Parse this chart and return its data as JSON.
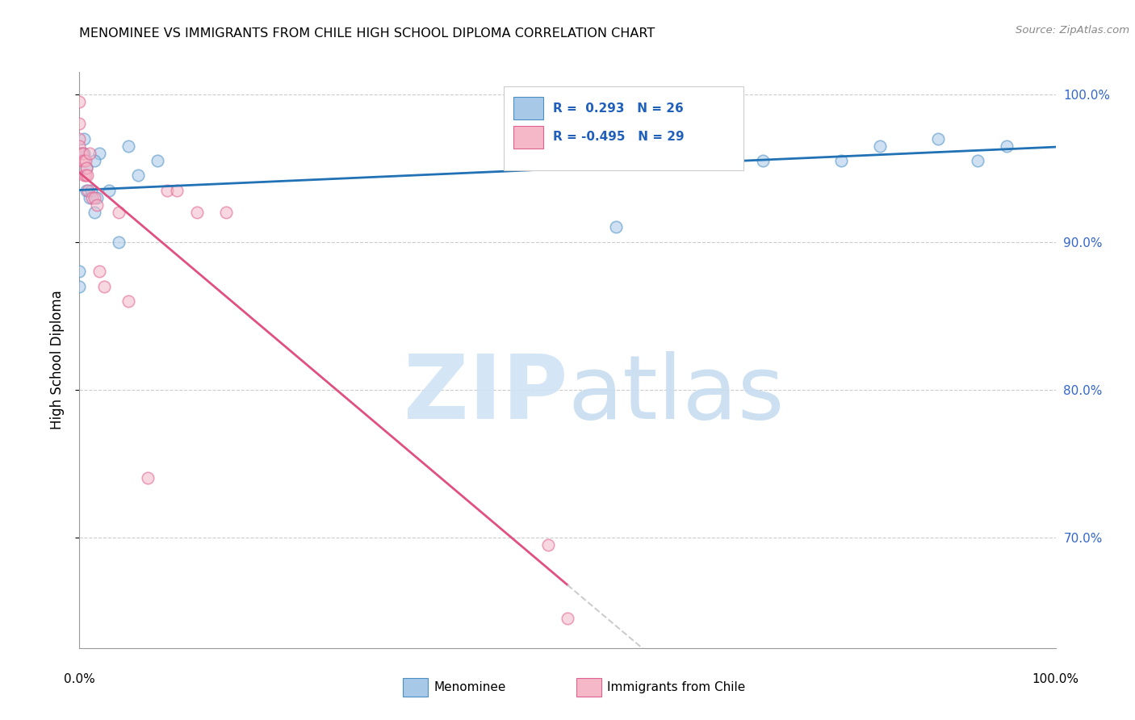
{
  "title": "MENOMINEE VS IMMIGRANTS FROM CHILE HIGH SCHOOL DIPLOMA CORRELATION CHART",
  "source": "Source: ZipAtlas.com",
  "ylabel": "High School Diploma",
  "watermark_zip": "ZIP",
  "watermark_atlas": "atlas",
  "legend_blue_r_val": "0.293",
  "legend_blue_n": "N = 26",
  "legend_pink_r_val": "-0.495",
  "legend_pink_n": "N = 29",
  "menominee_label": "Menominee",
  "chile_label": "Immigrants from Chile",
  "blue_fill": "#a8c8e8",
  "blue_edge": "#4a90c4",
  "pink_fill": "#f4b8c8",
  "pink_edge": "#e06090",
  "blue_line_color": "#2171b5",
  "pink_line_color": "#e05080",
  "dash_line_color": "#cccccc",
  "dot_size": 110,
  "dot_alpha": 0.55,
  "xlim": [
    0.0,
    1.0
  ],
  "ylim": [
    0.625,
    1.015
  ],
  "yticks": [
    0.7,
    0.8,
    0.9,
    1.0
  ],
  "ytick_labels": [
    "70.0%",
    "80.0%",
    "90.0%",
    "100.0%"
  ],
  "grid_color": "#cccccc",
  "menominee_x": [
    0.0,
    0.0,
    0.002,
    0.005,
    0.005,
    0.007,
    0.007,
    0.01,
    0.012,
    0.015,
    0.018,
    0.02,
    0.03,
    0.04,
    0.05,
    0.08,
    0.55,
    0.65,
    0.7,
    0.78,
    0.82,
    0.88,
    0.92,
    0.95,
    0.06,
    0.015
  ],
  "menominee_y": [
    0.87,
    0.88,
    0.96,
    0.97,
    0.96,
    0.95,
    0.935,
    0.93,
    0.935,
    0.92,
    0.93,
    0.96,
    0.935,
    0.9,
    0.965,
    0.955,
    0.91,
    0.975,
    0.955,
    0.955,
    0.965,
    0.97,
    0.955,
    0.965,
    0.945,
    0.955
  ],
  "chile_x": [
    0.0,
    0.0,
    0.0,
    0.0,
    0.002,
    0.002,
    0.004,
    0.005,
    0.005,
    0.006,
    0.006,
    0.007,
    0.008,
    0.009,
    0.01,
    0.013,
    0.015,
    0.018,
    0.02,
    0.025,
    0.04,
    0.05,
    0.07,
    0.09,
    0.1,
    0.12,
    0.15,
    0.48,
    0.5
  ],
  "chile_y": [
    0.995,
    0.98,
    0.97,
    0.965,
    0.96,
    0.955,
    0.96,
    0.955,
    0.945,
    0.955,
    0.945,
    0.95,
    0.945,
    0.935,
    0.96,
    0.93,
    0.93,
    0.925,
    0.88,
    0.87,
    0.92,
    0.86,
    0.74,
    0.935,
    0.935,
    0.92,
    0.92,
    0.695,
    0.645
  ]
}
